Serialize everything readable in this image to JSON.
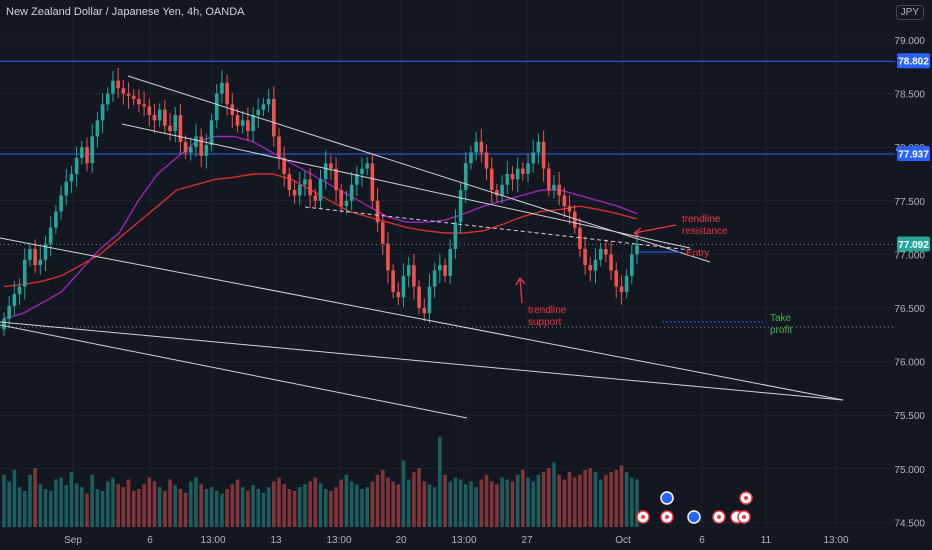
{
  "title": "New Zealand Dollar / Japanese Yen, 4h, OANDA",
  "currency": "JPY",
  "colors": {
    "background": "#131722",
    "up": "#26a69a",
    "down": "#ef5350",
    "level_line": "#2962ff",
    "ma_red": "#d32f2f",
    "ma_purple": "#9c27b0",
    "trendline": "#d1d4dc",
    "annotation_red": "#f23645",
    "annotation_green": "#4caf50",
    "axis_text": "#b2b5be",
    "grid": "#1e222d"
  },
  "chart_data": {
    "type": "candlestick",
    "y_axis": {
      "ylim": [
        74.45,
        79.17
      ],
      "ticks": [
        "79.000",
        "78.500",
        "78.000",
        "77.500",
        "77.000",
        "76.500",
        "76.000",
        "75.500",
        "75.000",
        "74.500"
      ]
    },
    "x_axis": {
      "ticks": [
        "Sep",
        "6",
        "13:00",
        "13",
        "13:00",
        "20",
        "13:00",
        "27",
        "Oct",
        "6",
        "11",
        "13:00"
      ]
    },
    "price_labels": [
      {
        "value": 78.802,
        "text": "78.802",
        "color": "#2962ff"
      },
      {
        "value": 77.937,
        "text": "77.937",
        "color": "#2962ff"
      },
      {
        "value": 77.092,
        "text": "77.092",
        "color": "#26a69a"
      }
    ],
    "horizontal_levels": [
      {
        "value": 78.802,
        "style": "solid",
        "color": "#2962ff"
      },
      {
        "value": 77.937,
        "style": "solid",
        "color": "#2962ff"
      },
      {
        "value": 77.092,
        "style": "dotted",
        "color": "#787b86"
      },
      {
        "value": 76.32,
        "style": "dotted",
        "color": "#787b86"
      }
    ],
    "close_prices": [
      76.4,
      76.52,
      76.63,
      76.7,
      76.95,
      77.05,
      76.9,
      76.95,
      77.1,
      77.25,
      77.4,
      77.55,
      77.68,
      77.75,
      77.9,
      78.0,
      77.85,
      78.1,
      78.25,
      78.4,
      78.5,
      78.62,
      78.55,
      78.5,
      78.48,
      78.45,
      78.4,
      78.38,
      78.3,
      78.25,
      78.35,
      78.2,
      78.15,
      78.3,
      78.05,
      77.95,
      78.0,
      78.1,
      77.92,
      78.02,
      78.25,
      78.5,
      78.6,
      78.4,
      78.3,
      78.2,
      78.25,
      78.15,
      78.3,
      78.35,
      78.4,
      78.45,
      78.1,
      77.9,
      77.75,
      77.6,
      77.55,
      77.65,
      77.7,
      77.55,
      77.5,
      77.7,
      77.85,
      77.8,
      77.6,
      77.45,
      77.5,
      77.65,
      77.75,
      77.8,
      77.85,
      77.5,
      77.3,
      77.1,
      76.85,
      76.65,
      76.6,
      76.8,
      76.9,
      76.7,
      76.5,
      76.45,
      76.7,
      76.85,
      76.9,
      76.8,
      77.05,
      77.3,
      77.6,
      77.85,
      77.95,
      78.05,
      77.95,
      77.8,
      77.6,
      77.55,
      77.65,
      77.75,
      77.7,
      77.8,
      77.75,
      77.85,
      77.95,
      78.05,
      77.8,
      77.6,
      77.65,
      77.55,
      77.45,
      77.4,
      77.25,
      77.05,
      76.9,
      76.85,
      76.95,
      77.05,
      77.0,
      76.85,
      76.7,
      76.65,
      76.8,
      77.0,
      77.1
    ],
    "volumes": [
      55,
      48,
      60,
      42,
      38,
      55,
      62,
      45,
      40,
      38,
      50,
      52,
      44,
      58,
      46,
      42,
      35,
      55,
      40,
      38,
      48,
      52,
      45,
      42,
      50,
      38,
      40,
      45,
      52,
      48,
      42,
      38,
      50,
      44,
      40,
      36,
      48,
      52,
      45,
      40,
      42,
      38,
      35,
      40,
      45,
      50,
      42,
      38,
      44,
      40,
      36,
      42,
      48,
      52,
      45,
      40,
      38,
      42,
      45,
      48,
      52,
      46,
      40,
      38,
      42,
      50,
      55,
      48,
      45,
      40,
      42,
      48,
      55,
      60,
      52,
      48,
      45,
      70,
      50,
      58,
      62,
      48,
      45,
      42,
      95,
      55,
      48,
      52,
      50,
      45,
      48,
      42,
      50,
      55,
      48,
      45,
      52,
      50,
      48,
      55,
      60,
      52,
      48,
      55,
      58,
      62,
      68,
      55,
      50,
      58,
      52,
      55,
      60,
      62,
      58,
      50,
      55,
      58,
      60,
      65,
      58,
      52,
      50
    ],
    "moving_averages": [
      {
        "color": "#d32f2f",
        "values": [
          76.7,
          76.72,
          76.75,
          76.8,
          76.9,
          77.0,
          77.15,
          77.3,
          77.45,
          77.6,
          77.65,
          77.7,
          77.72,
          77.75,
          77.75,
          77.7,
          77.6,
          77.5,
          77.4,
          77.35,
          77.3,
          77.25,
          77.22,
          77.2,
          77.2,
          77.22,
          77.28,
          77.35,
          77.4,
          77.42,
          77.45,
          77.42,
          77.38,
          77.33
        ]
      },
      {
        "color": "#9c27b0",
        "values": [
          76.4,
          76.45,
          76.55,
          76.65,
          76.85,
          77.05,
          77.2,
          77.5,
          77.75,
          77.9,
          78.05,
          78.1,
          78.1,
          78.05,
          77.95,
          77.85,
          77.75,
          77.65,
          77.55,
          77.45,
          77.35,
          77.3,
          77.3,
          77.32,
          77.38,
          77.45,
          77.5,
          77.55,
          77.6,
          77.6,
          77.55,
          77.5,
          77.45,
          77.38
        ]
      }
    ],
    "annotations": [
      {
        "text": "trendline",
        "color": "#f23645"
      },
      {
        "text": "resistance",
        "color": "#f23645"
      },
      {
        "text": "Entry",
        "color": "#f23645"
      },
      {
        "text": "trendline",
        "color": "#f23645"
      },
      {
        "text": "support",
        "color": "#f23645"
      },
      {
        "text": "Take",
        "color": "#4caf50"
      },
      {
        "text": "profit",
        "color": "#4caf50"
      }
    ]
  }
}
